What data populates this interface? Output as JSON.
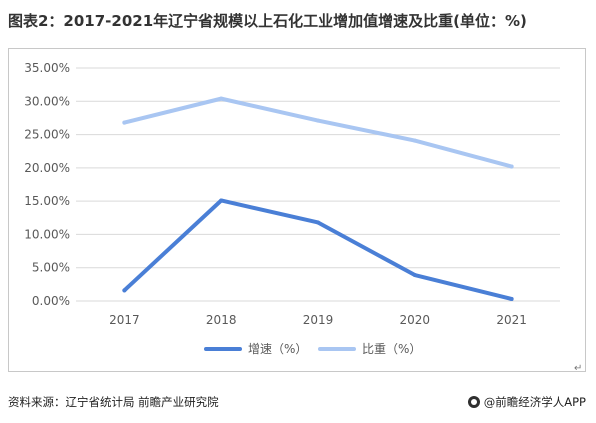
{
  "title": "图表2：2017-2021年辽宁省规模以上石化工业增加值增速及比重(单位：%)",
  "chart_data": {
    "type": "line",
    "categories": [
      "2017",
      "2018",
      "2019",
      "2020",
      "2021"
    ],
    "series": [
      {
        "name": "增速（%）",
        "values": [
          1.6,
          15.1,
          11.8,
          3.9,
          0.3
        ],
        "color": "#4a7fd6"
      },
      {
        "name": "比重（%）",
        "values": [
          26.8,
          30.4,
          27.1,
          24.1,
          20.2
        ],
        "color": "#a9c6f2"
      }
    ],
    "ylim": [
      0,
      35
    ],
    "yticks": [
      "0.00%",
      "5.00%",
      "10.00%",
      "15.00%",
      "20.00%",
      "25.00%",
      "30.00%",
      "35.00%"
    ],
    "grid": true,
    "legend_position": "bottom"
  },
  "footer": {
    "source": "资料来源：辽宁省统计局 前瞻产业研究院",
    "brand": "@前瞻经济学人APP",
    "brand_icon": "qianzhan-logo-icon"
  },
  "return_mark": "↵"
}
